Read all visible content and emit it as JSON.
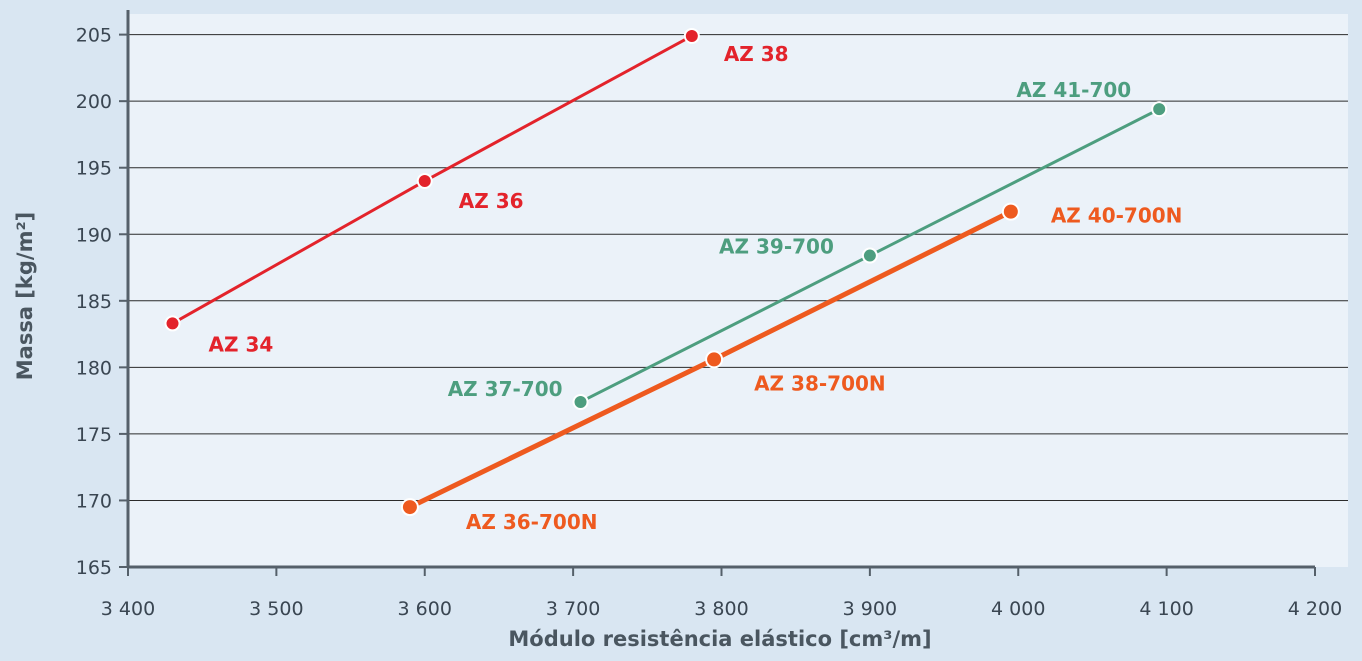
{
  "chart_data": {
    "type": "line",
    "xlabel": "Módulo resistência elástico [cm³/m]",
    "ylabel": "Massa [kg/m²]",
    "xlim": [
      3400,
      4200
    ],
    "ylim": [
      165,
      207
    ],
    "x_ticks": [
      3400,
      3500,
      3600,
      3700,
      3800,
      3900,
      4000,
      4100,
      4200
    ],
    "x_tick_labels": [
      "3 400",
      "3 500",
      "3 600",
      "3 700",
      "3 800",
      "3 900",
      "4 000",
      "4 100",
      "4 200"
    ],
    "y_ticks": [
      165,
      170,
      175,
      180,
      185,
      190,
      195,
      200,
      205
    ],
    "y_tick_labels": [
      "165",
      "170",
      "175",
      "180",
      "185",
      "190",
      "195",
      "200",
      "205"
    ],
    "grid": "horizontal",
    "colors": {
      "background": "#d9e6f2",
      "plot_area": "#ebf2f9",
      "axis": "#55606a"
    },
    "series": [
      {
        "color": "#e3232b",
        "points": [
          {
            "x": 3430,
            "y": 183.3,
            "label": "AZ 34"
          },
          {
            "x": 3600,
            "y": 194.0,
            "label": "AZ 36"
          },
          {
            "x": 3780,
            "y": 204.9,
            "label": "AZ 38"
          }
        ]
      },
      {
        "color": "#4d9e7f",
        "points": [
          {
            "x": 3705,
            "y": 177.4,
            "label": "AZ 37-700"
          },
          {
            "x": 3900,
            "y": 188.4,
            "label": "AZ 39-700"
          },
          {
            "x": 4095,
            "y": 199.4,
            "label": "AZ 41-700"
          }
        ]
      },
      {
        "color": "#ee5a1f",
        "points": [
          {
            "x": 3590,
            "y": 169.5,
            "label": "AZ 36-700N"
          },
          {
            "x": 3795,
            "y": 180.6,
            "label": "AZ 38-700N"
          },
          {
            "x": 3995,
            "y": 191.7,
            "label": "AZ 40-700N"
          }
        ]
      }
    ]
  }
}
